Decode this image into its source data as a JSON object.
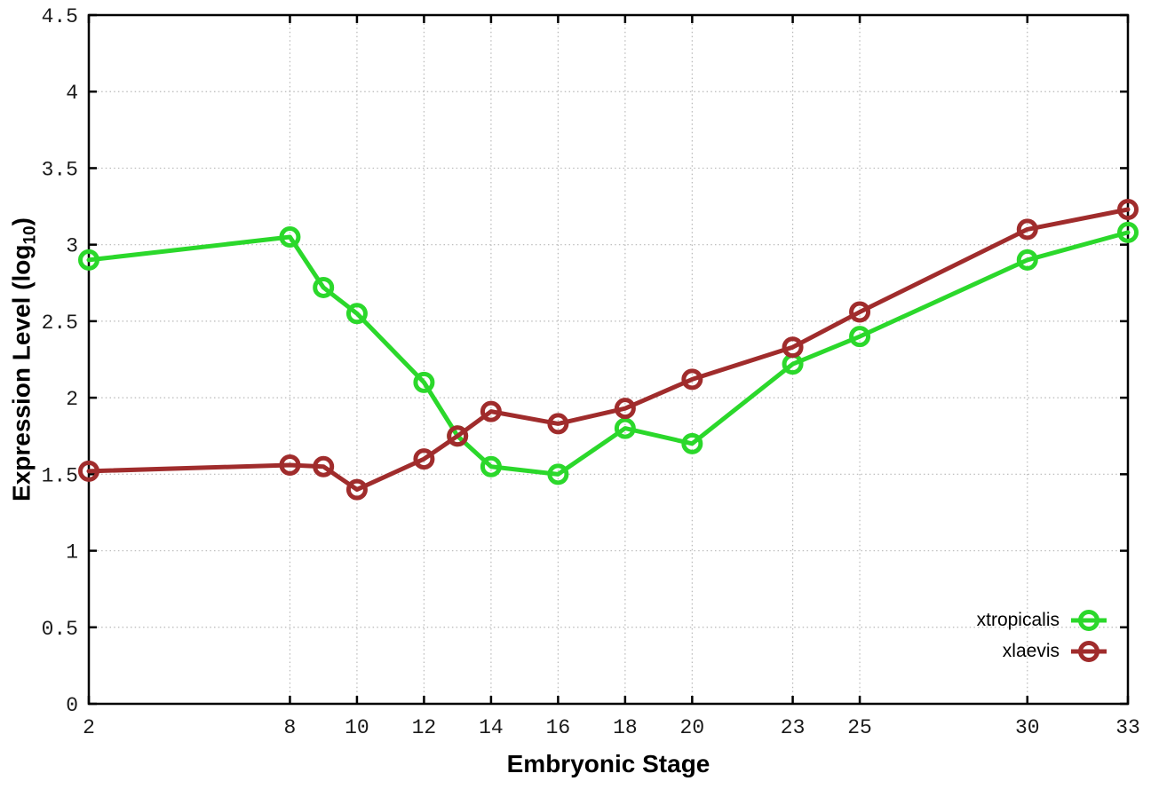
{
  "figure": {
    "background": "#ffffff"
  },
  "chart_data": {
    "type": "line",
    "title": "",
    "xlabel": "Embryonic Stage",
    "ylabel": "Expression Level (log10)",
    "ylabel_parts": {
      "prefix": "Expression Level (log",
      "sub": "10",
      "suffix": ")"
    },
    "x": [
      2,
      8,
      9,
      10,
      12,
      13,
      14,
      16,
      18,
      20,
      23,
      25,
      30,
      33
    ],
    "series": [
      {
        "name": "xtropicalis",
        "color": "#2bd82b",
        "values": [
          2.9,
          3.05,
          2.72,
          2.55,
          2.1,
          1.75,
          1.55,
          1.5,
          1.8,
          1.7,
          2.22,
          2.4,
          2.9,
          3.08
        ]
      },
      {
        "name": "xlaevis",
        "color": "#a02c2c",
        "values": [
          1.52,
          1.56,
          1.55,
          1.4,
          1.6,
          1.75,
          1.91,
          1.83,
          1.93,
          2.12,
          2.33,
          2.56,
          3.1,
          3.23
        ]
      }
    ],
    "x_tick_labels": [
      "2",
      "8",
      "10",
      "12",
      "14",
      "16",
      "18",
      "20",
      "23",
      "25",
      "30",
      "33"
    ],
    "y_tick_labels": [
      "0",
      "0.5",
      "1",
      "1.5",
      "2",
      "2.5",
      "3",
      "3.5",
      "4",
      "4.5"
    ],
    "xlim": [
      2,
      33
    ],
    "ylim": [
      0,
      4.5
    ],
    "grid": true,
    "grid_color": "#b8b8b8",
    "axis_color": "#000000",
    "tick_label_color": "#1a1a1a",
    "legend_position": "bottom-right"
  }
}
